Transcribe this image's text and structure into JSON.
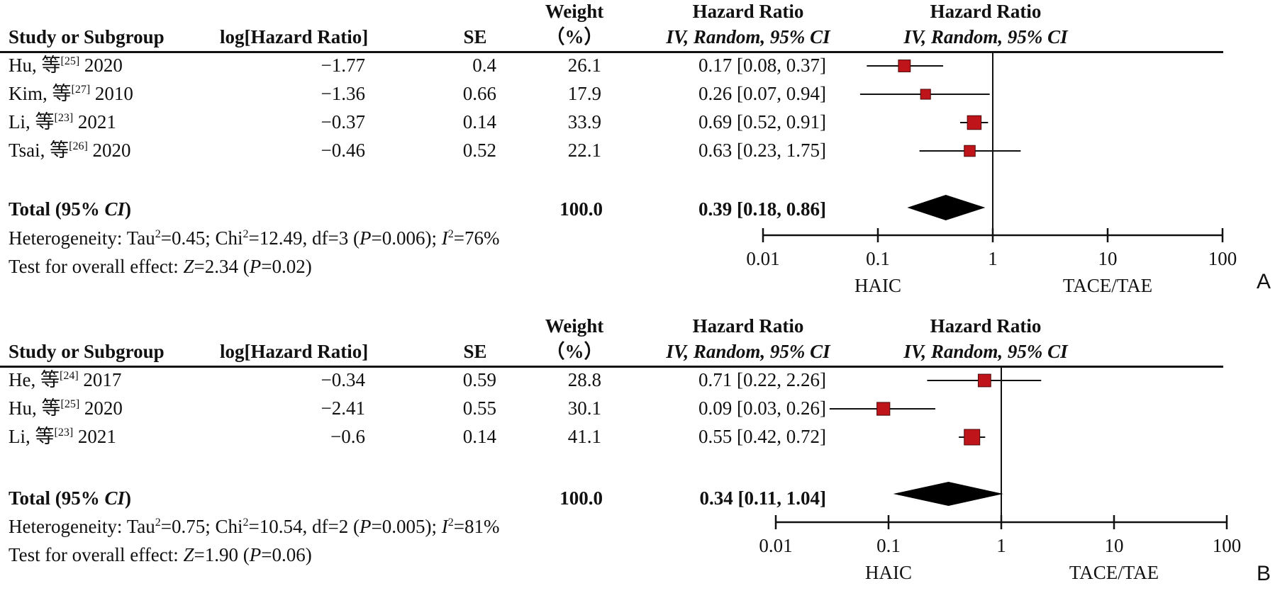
{
  "panels": [
    {
      "letter": "A",
      "headers": {
        "study": "Study or Subgroup",
        "loghr": "log[Hazard Ratio]",
        "se": "SE",
        "weight_1": "Weight",
        "weight_2": "（%）",
        "hr_1": "Hazard Ratio",
        "hr_2": "IV, Random, 95% CI",
        "plot_1": "Hazard Ratio",
        "plot_2": "IV, Random, 95% CI"
      },
      "studies": [
        {
          "name": "Hu, 等",
          "ref": "[25]",
          "year": "2020",
          "loghr": "−1.77",
          "se": "0.4",
          "weight": "26.1",
          "ci_text": "0.17 [0.08, 0.37]",
          "hr": 0.17,
          "lo": 0.08,
          "hi": 0.37,
          "w": 26.1
        },
        {
          "name": "Kim, 等",
          "ref": "[27]",
          "year": "2010",
          "loghr": "−1.36",
          "se": "0.66",
          "weight": "17.9",
          "ci_text": "0.26 [0.07, 0.94]",
          "hr": 0.26,
          "lo": 0.07,
          "hi": 0.94,
          "w": 17.9
        },
        {
          "name": "Li, 等",
          "ref": "[23]",
          "year": "2021",
          "loghr": "−0.37",
          "se": "0.14",
          "weight": "33.9",
          "ci_text": "0.69 [0.52, 0.91]",
          "hr": 0.69,
          "lo": 0.52,
          "hi": 0.91,
          "w": 33.9
        },
        {
          "name": "Tsai, 等",
          "ref": "[26]",
          "year": "2020",
          "loghr": "−0.46",
          "se": "0.52",
          "weight": "22.1",
          "ci_text": "0.63 [0.23, 1.75]",
          "hr": 0.63,
          "lo": 0.23,
          "hi": 1.75,
          "w": 22.1
        }
      ],
      "total": {
        "label": "Total (95% ",
        "label_ci": "CI",
        "label_end": ")",
        "weight": "100.0",
        "ci_text": "0.39 [0.18, 0.86]",
        "hr": 0.39,
        "lo": 0.18,
        "hi": 0.86
      },
      "heterogeneity": {
        "p1": "Heterogeneity: Tau",
        "p2": "=0.45; Chi",
        "p3": "=12.49, df=3 (",
        "p4": "P",
        "p5": "=0.006); ",
        "p6": "I",
        "p7": "=76%"
      },
      "overall": {
        "p1": "Test for overall effect: ",
        "p2": "Z",
        "p3": "=2.34 (",
        "p4": "P",
        "p5": "=0.02)"
      },
      "axis": {
        "ticks": [
          0.01,
          0.1,
          1,
          10,
          100
        ],
        "tick_labels": [
          "0.01",
          "0.1",
          "1",
          "10",
          "100"
        ],
        "favours_left": "HAIC",
        "favours_right": "TACE/TAE"
      }
    },
    {
      "letter": "B",
      "headers": {
        "study": "Study or Subgroup",
        "loghr": "log[Hazard Ratio]",
        "se": "SE",
        "weight_1": "Weight",
        "weight_2": "（%）",
        "hr_1": "Hazard Ratio",
        "hr_2": "IV, Random, 95% CI",
        "plot_1": "Hazard Ratio",
        "plot_2": "IV, Random, 95% CI"
      },
      "studies": [
        {
          "name": "He, 等",
          "ref": "[24]",
          "year": "2017",
          "loghr": "−0.34",
          "se": "0.59",
          "weight": "28.8",
          "ci_text": "0.71 [0.22, 2.26]",
          "hr": 0.71,
          "lo": 0.22,
          "hi": 2.26,
          "w": 28.8
        },
        {
          "name": "Hu, 等",
          "ref": "[25]",
          "year": "2020",
          "loghr": "−2.41",
          "se": "0.55",
          "weight": "30.1",
          "ci_text": "0.09 [0.03, 0.26]",
          "hr": 0.09,
          "lo": 0.03,
          "hi": 0.26,
          "w": 30.1
        },
        {
          "name": "Li, 等",
          "ref": "[23]",
          "year": "2021",
          "loghr": "−0.6",
          "se": "0.14",
          "weight": "41.1",
          "ci_text": "0.55 [0.42, 0.72]",
          "hr": 0.55,
          "lo": 0.42,
          "hi": 0.72,
          "w": 41.1
        }
      ],
      "total": {
        "label": "Total (95% ",
        "label_ci": "CI",
        "label_end": ")",
        "weight": "100.0",
        "ci_text": "0.34 [0.11, 1.04]",
        "hr": 0.34,
        "lo": 0.11,
        "hi": 1.04
      },
      "heterogeneity": {
        "p1": "Heterogeneity: Tau",
        "p2": "=0.75; Chi",
        "p3": "=10.54, df=2 (",
        "p4": "P",
        "p5": "=0.005); ",
        "p6": "I",
        "p7": "=81%"
      },
      "overall": {
        "p1": "Test for overall effect: ",
        "p2": "Z",
        "p3": "=1.90 (",
        "p4": "P",
        "p5": "=0.06)"
      },
      "axis": {
        "ticks": [
          0.01,
          0.1,
          1,
          10,
          100
        ],
        "tick_labels": [
          "0.01",
          "0.1",
          "1",
          "10",
          "100"
        ],
        "favours_left": "HAIC",
        "favours_right": "TACE/TAE"
      }
    }
  ],
  "sup2": "2",
  "chart_data": [
    {
      "type": "forest",
      "x_scale": "log",
      "xlim": [
        0.01,
        100
      ],
      "series": [
        {
          "name": "Study",
          "labels": [
            "Hu, 等[25] 2020",
            "Kim, 等[27] 2010",
            "Li, 等[23] 2021",
            "Tsai, 等[26] 2020"
          ],
          "hr": [
            0.17,
            0.26,
            0.69,
            0.63
          ],
          "ci_low": [
            0.08,
            0.07,
            0.52,
            0.23
          ],
          "ci_high": [
            0.37,
            0.94,
            0.91,
            1.75
          ],
          "weight": [
            26.1,
            17.9,
            33.9,
            22.1
          ]
        }
      ],
      "pooled": {
        "hr": 0.39,
        "ci_low": 0.18,
        "ci_high": 0.86
      }
    },
    {
      "type": "forest",
      "x_scale": "log",
      "xlim": [
        0.01,
        100
      ],
      "series": [
        {
          "name": "Study",
          "labels": [
            "He, 等[24] 2017",
            "Hu, 等[25] 2020",
            "Li, 等[23] 2021"
          ],
          "hr": [
            0.71,
            0.09,
            0.55
          ],
          "ci_low": [
            0.22,
            0.03,
            0.42
          ],
          "ci_high": [
            2.26,
            0.26,
            0.72
          ],
          "weight": [
            28.8,
            30.1,
            41.1
          ]
        }
      ],
      "pooled": {
        "hr": 0.34,
        "ci_low": 0.11,
        "ci_high": 1.04
      }
    }
  ]
}
